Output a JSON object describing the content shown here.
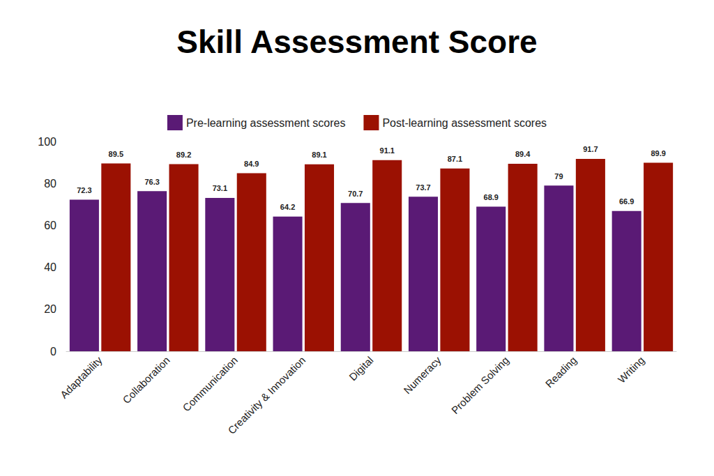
{
  "chart_data": {
    "type": "bar",
    "title": "Skill Assessment Score",
    "categories": [
      "Adaptability",
      "Collaboration",
      "Communication",
      "Creativity & Innovation",
      "Digital",
      "Numeracy",
      "Problem Solving",
      "Reading",
      "Writing"
    ],
    "series": [
      {
        "name": "Pre-learning assessment scores",
        "color": "#5a1a75",
        "values": [
          72.3,
          76.3,
          73.1,
          64.2,
          70.7,
          73.7,
          68.9,
          79,
          66.9
        ]
      },
      {
        "name": "Post-learning assessment scores",
        "color": "#9b1102",
        "values": [
          89.5,
          89.2,
          84.9,
          89.1,
          91.1,
          87.1,
          89.4,
          91.7,
          89.9
        ]
      }
    ],
    "ylim": [
      0,
      100
    ],
    "yticks": [
      0,
      20,
      40,
      60,
      80,
      100
    ],
    "grid": false,
    "legend": "top",
    "data_labels": true
  }
}
